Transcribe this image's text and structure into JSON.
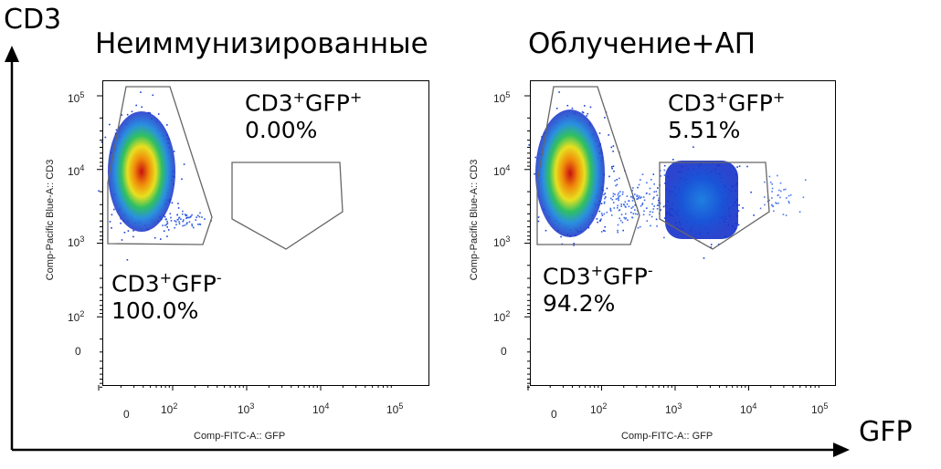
{
  "axes": {
    "y_title": "CD3",
    "x_title": "GFP"
  },
  "colors": {
    "gate": "#666666",
    "axis": "#000000"
  },
  "chart_data": [
    {
      "type": "scatter",
      "title": "Неиммунизированные",
      "xlabel": "Comp-FITC-A:: GFP",
      "ylabel": "Comp-Pacific Blue-A:: CD3",
      "x_ticks": [
        "0",
        "10",
        "10",
        "10",
        "10"
      ],
      "x_tick_exps": [
        "",
        "2",
        "3",
        "4",
        "5"
      ],
      "y_ticks": [
        "0",
        "10",
        "10",
        "10",
        "10"
      ],
      "y_tick_exps": [
        "",
        "2",
        "3",
        "4",
        "5"
      ],
      "gates": [
        {
          "name_main": "CD3",
          "sup1": "+",
          "name_rest": "GFP",
          "sup2": "-",
          "percent": "100.0%"
        },
        {
          "name_main": "CD3",
          "sup1": "+",
          "name_rest": "GFP",
          "sup2": "+",
          "percent": "0.00%"
        }
      ]
    },
    {
      "type": "scatter",
      "title": "Облучение+АП",
      "xlabel": "Comp-FITC-A:: GFP",
      "ylabel": "Comp-Pacific Blue-A:: CD3",
      "x_ticks": [
        "0",
        "10",
        "10",
        "10",
        "10"
      ],
      "x_tick_exps": [
        "",
        "2",
        "3",
        "4",
        "5"
      ],
      "y_ticks": [
        "0",
        "10",
        "10",
        "10",
        "10"
      ],
      "y_tick_exps": [
        "",
        "2",
        "3",
        "4",
        "5"
      ],
      "gates": [
        {
          "name_main": "CD3",
          "sup1": "+",
          "name_rest": "GFP",
          "sup2": "-",
          "percent": "94.2%"
        },
        {
          "name_main": "CD3",
          "sup1": "+",
          "name_rest": "GFP",
          "sup2": "+",
          "percent": "5.51%"
        }
      ]
    }
  ]
}
